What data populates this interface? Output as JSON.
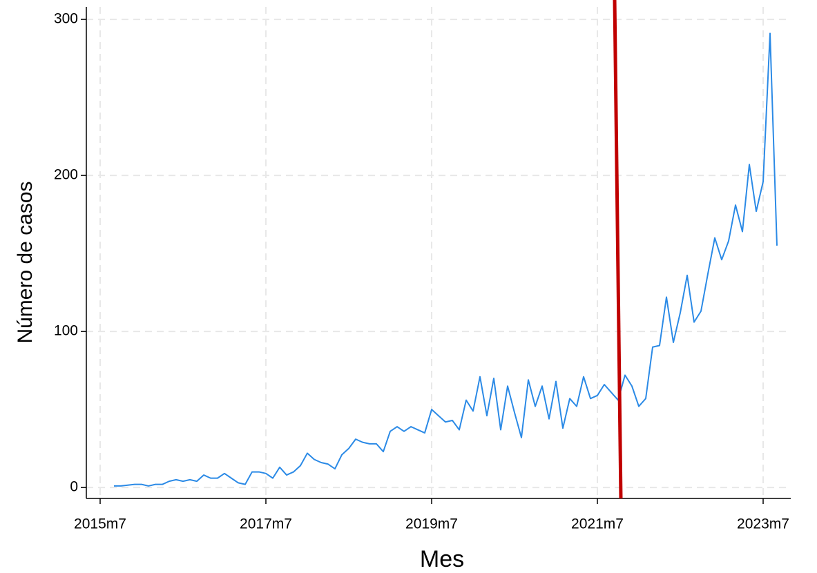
{
  "chart_data": {
    "type": "line",
    "x_label": "Mes",
    "y_label": "Número de casos",
    "x": [
      "2015m9",
      "2015m10",
      "2015m11",
      "2015m12",
      "2016m1",
      "2016m2",
      "2016m3",
      "2016m4",
      "2016m5",
      "2016m6",
      "2016m7",
      "2016m8",
      "2016m9",
      "2016m10",
      "2016m11",
      "2016m12",
      "2017m1",
      "2017m2",
      "2017m3",
      "2017m4",
      "2017m5",
      "2017m6",
      "2017m7",
      "2017m8",
      "2017m9",
      "2017m10",
      "2017m11",
      "2017m12",
      "2018m1",
      "2018m2",
      "2018m3",
      "2018m4",
      "2018m5",
      "2018m6",
      "2018m7",
      "2018m8",
      "2018m9",
      "2018m10",
      "2018m11",
      "2018m12",
      "2019m1",
      "2019m2",
      "2019m3",
      "2019m4",
      "2019m5",
      "2019m6",
      "2019m7",
      "2019m8",
      "2019m9",
      "2019m10",
      "2019m11",
      "2019m12",
      "2020m1",
      "2020m2",
      "2020m3",
      "2020m4",
      "2020m5",
      "2020m6",
      "2020m7",
      "2020m8",
      "2020m9",
      "2020m10",
      "2020m11",
      "2020m12",
      "2021m1",
      "2021m2",
      "2021m3",
      "2021m4",
      "2021m5",
      "2021m6",
      "2021m7",
      "2021m8",
      "2021m9",
      "2021m10",
      "2021m11",
      "2021m12",
      "2022m1",
      "2022m2",
      "2022m3",
      "2022m4",
      "2022m5",
      "2022m6",
      "2022m7",
      "2022m8",
      "2022m9",
      "2022m10",
      "2022m11",
      "2022m12",
      "2023m1",
      "2023m2",
      "2023m3",
      "2023m4",
      "2023m5",
      "2023m6",
      "2023m7",
      "2023m8",
      "2023m9"
    ],
    "series": [
      {
        "color": "#2b8ae6",
        "values": [
          1,
          1,
          1.5,
          2,
          2,
          1,
          2,
          2,
          4,
          5,
          4,
          5,
          4,
          8,
          6,
          6,
          9,
          6,
          3,
          2,
          10,
          10,
          9,
          6,
          13,
          8,
          10,
          14,
          22,
          18,
          16,
          15,
          12,
          21,
          25,
          31,
          29,
          28,
          28,
          23,
          36,
          39,
          36,
          39,
          37,
          35,
          50,
          46,
          42,
          43,
          37,
          56,
          49,
          71,
          46,
          70,
          37,
          65,
          48,
          32,
          69,
          52,
          65,
          44,
          68,
          38,
          57,
          52,
          71,
          57,
          59,
          66,
          61,
          56,
          72,
          65,
          52,
          57,
          90,
          91,
          122,
          93,
          112,
          136,
          106,
          113,
          137,
          160,
          146,
          158,
          181,
          164,
          207,
          177,
          196,
          291,
          155
        ]
      }
    ],
    "xlim": [
      "2015m5",
      "2023m11"
    ],
    "xticks": [
      "2015m7",
      "2017m7",
      "2019m7",
      "2021m7",
      "2023m7"
    ],
    "ylim": [
      -7,
      308
    ],
    "yticks": [
      0,
      100,
      200,
      300
    ],
    "grid": true,
    "reference_line": {
      "x": "2021m10",
      "color": "#c00000"
    }
  }
}
